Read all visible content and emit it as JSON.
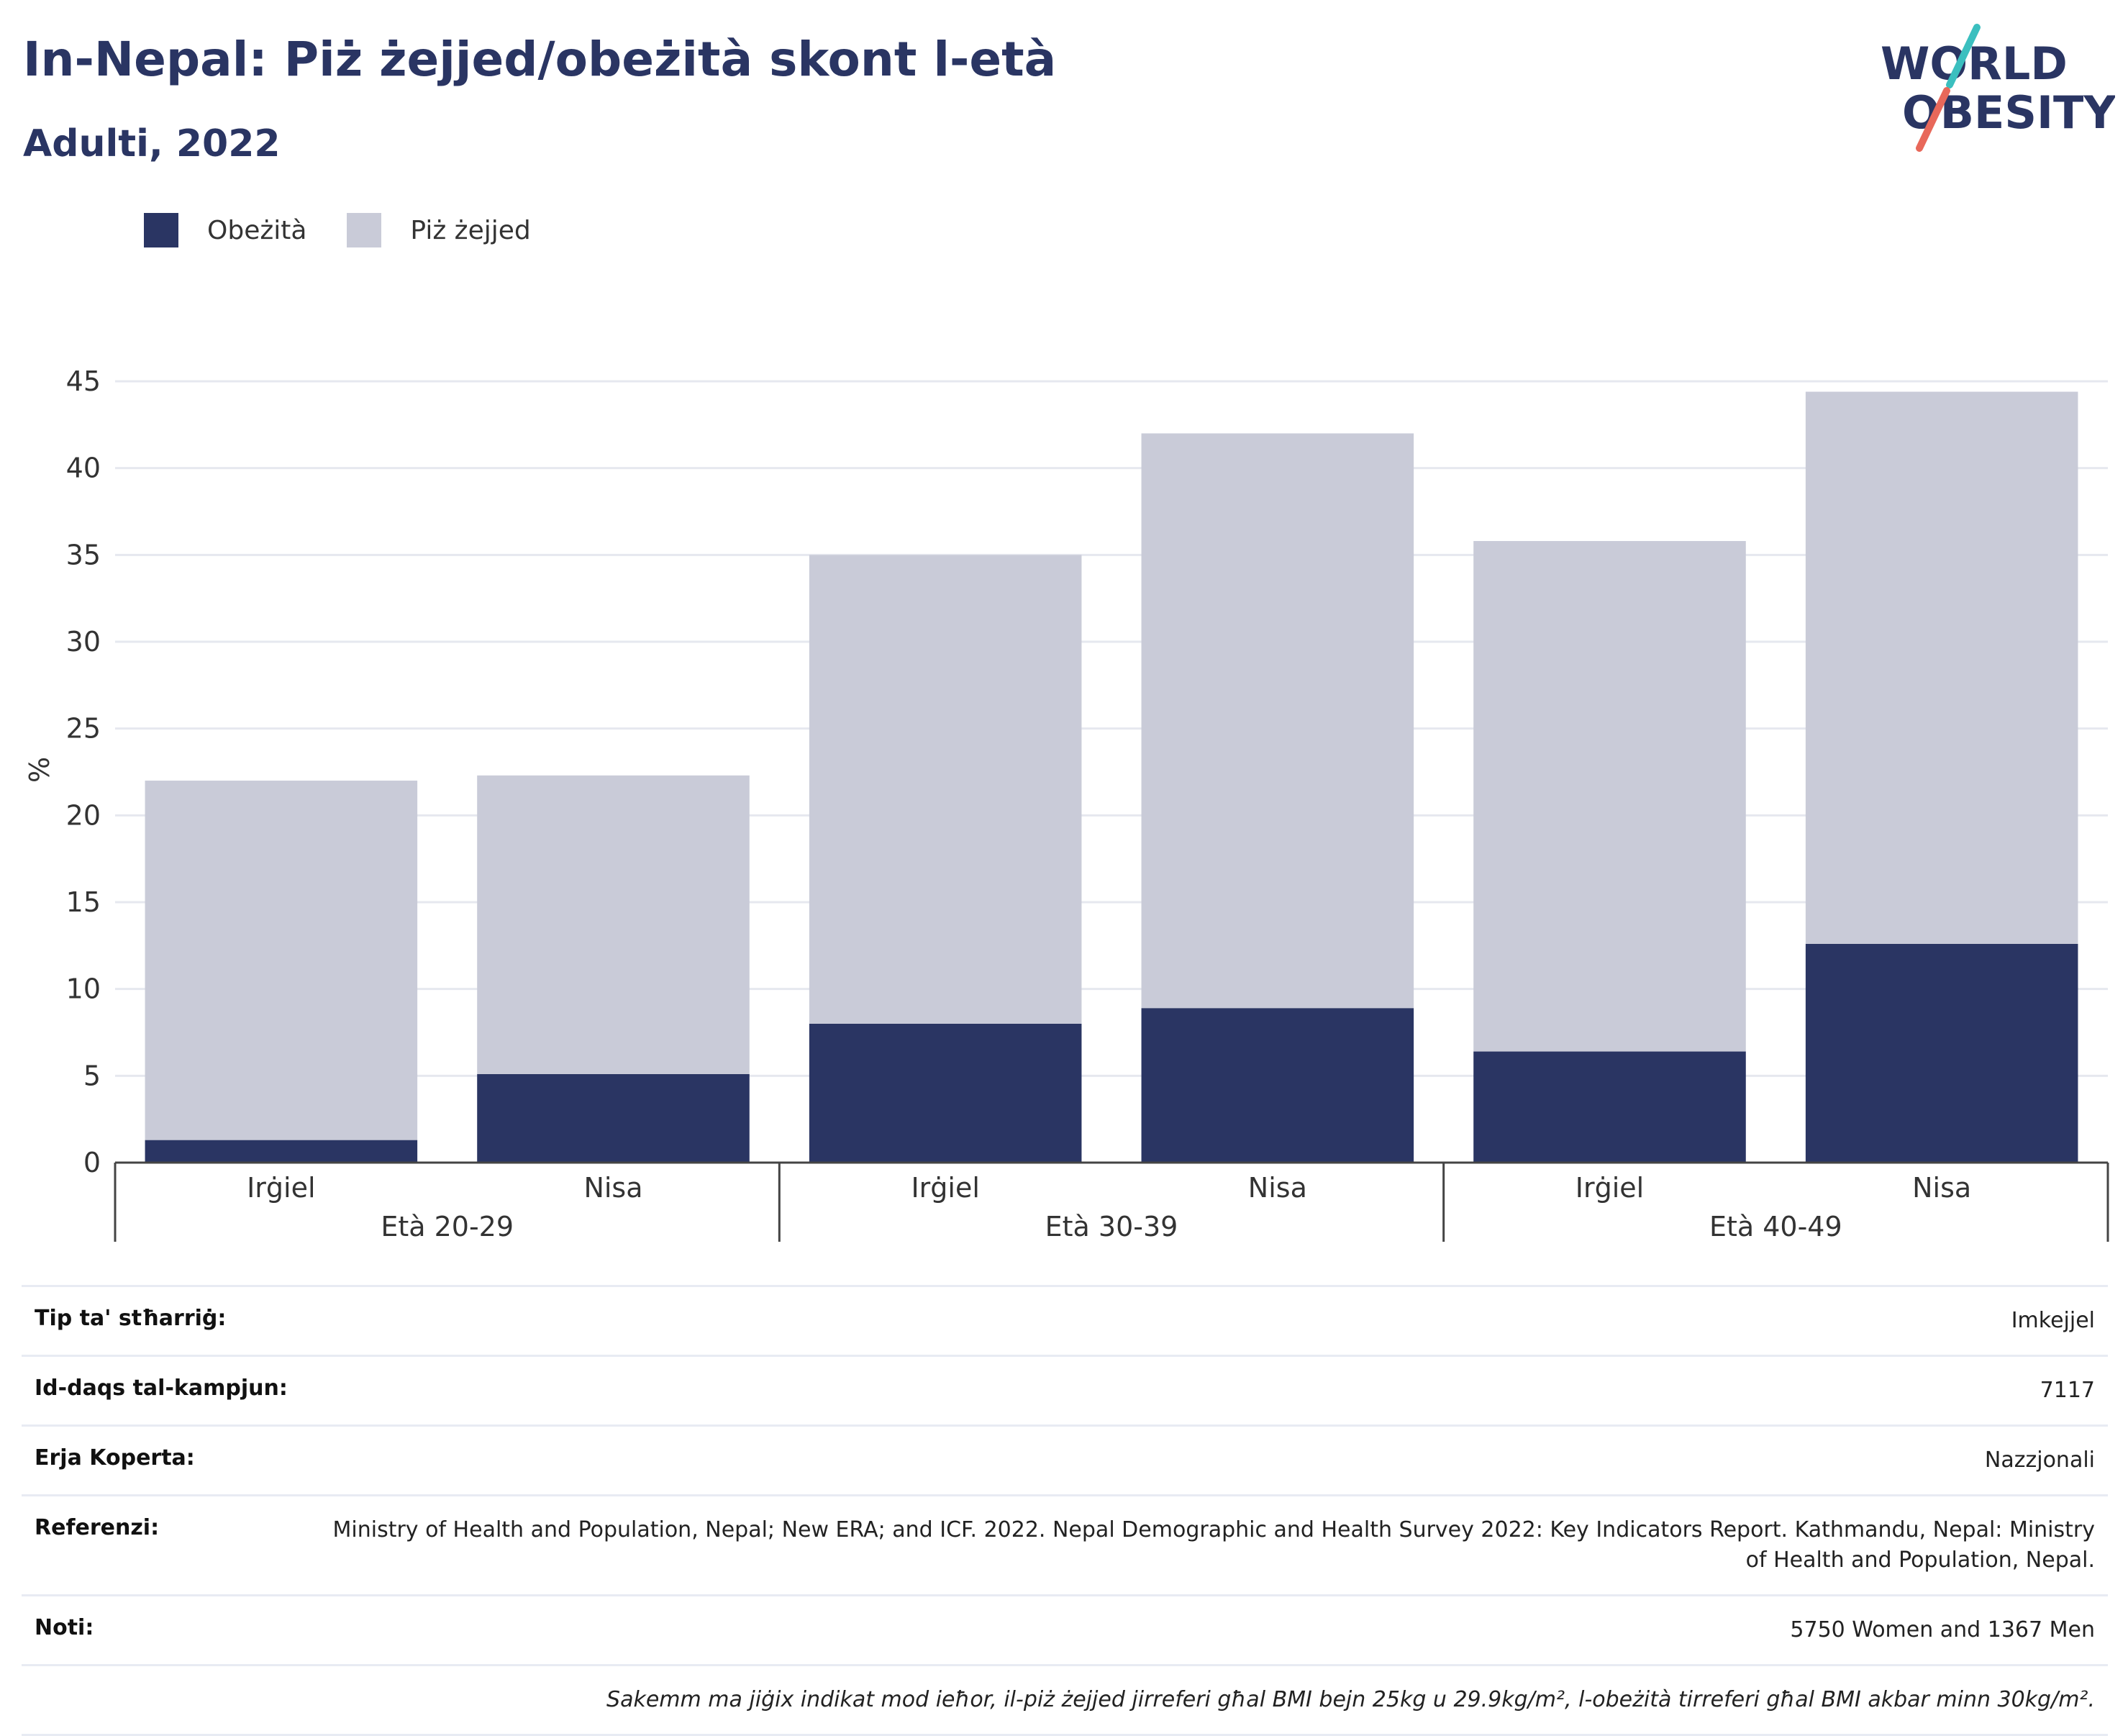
{
  "header": {
    "title": "In-Nepal: Piż żejjed/obeżità skont l-età",
    "subtitle": "Adulti, 2022"
  },
  "logo": {
    "line1": "WORLD",
    "line2": "OBESITY"
  },
  "legend": [
    {
      "label": "Obeżità",
      "color": "#2a3563"
    },
    {
      "label": "Piż żejjed",
      "color": "#c9cbd8"
    }
  ],
  "chart_data": {
    "type": "bar",
    "stacked": true,
    "ylabel": "%",
    "ylim": [
      0,
      45
    ],
    "yticks": [
      0,
      5,
      10,
      15,
      20,
      25,
      30,
      35,
      40,
      45
    ],
    "grid": true,
    "legend_position": "top-left",
    "groups": [
      "Età 20-29",
      "Età 30-39",
      "Età 40-49"
    ],
    "categories": [
      "Irġiel",
      "Nisa",
      "Irġiel",
      "Nisa",
      "Irġiel",
      "Nisa"
    ],
    "series": [
      {
        "name": "Obeżità",
        "color": "#2a3563",
        "values": [
          1.3,
          5.1,
          8.0,
          8.9,
          6.4,
          12.6
        ]
      },
      {
        "name": "Piż żejjed",
        "color": "#c9cbd8",
        "values": [
          20.7,
          17.2,
          27.0,
          33.1,
          29.4,
          31.8
        ]
      }
    ]
  },
  "info": [
    {
      "key": "Tip ta' stħarriġ:",
      "value": "Imkejjel"
    },
    {
      "key": "Id-daqs tal-kampjun:",
      "value": "7117"
    },
    {
      "key": "Erja Koperta:",
      "value": "Nazzjonali"
    },
    {
      "key": "Referenzi:",
      "value": "Ministry of Health and Population, Nepal; New ERA; and ICF. 2022. Nepal Demographic and Health Survey 2022: Key Indicators Report. Kathmandu, Nepal: Ministry of Health and Population, Nepal."
    },
    {
      "key": "Noti:",
      "value": "5750 Women and 1367 Men"
    },
    {
      "key": "",
      "value": "Sakemm ma jiġix indikat mod ieħor, il-piż żejjed jirreferi għal BMI bejn 25kg u 29.9kg/m², l-obeżità tirreferi għal BMI akbar minn 30kg/m²."
    }
  ]
}
